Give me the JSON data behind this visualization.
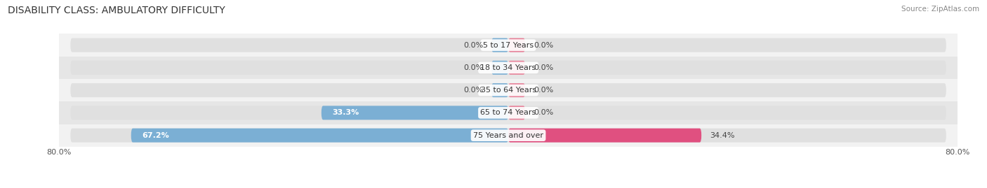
{
  "title": "DISABILITY CLASS: AMBULATORY DIFFICULTY",
  "source": "Source: ZipAtlas.com",
  "categories": [
    "5 to 17 Years",
    "18 to 34 Years",
    "35 to 64 Years",
    "65 to 74 Years",
    "75 Years and over"
  ],
  "male_values": [
    0.0,
    0.0,
    0.0,
    33.3,
    67.2
  ],
  "female_values": [
    0.0,
    0.0,
    0.0,
    0.0,
    34.4
  ],
  "male_color": "#7bafd4",
  "female_color": "#e8829a",
  "female_color_bright": "#e05080",
  "row_bg_color_light": "#f2f2f2",
  "row_bg_color_dark": "#e6e6e6",
  "pill_bg_color": "#e0e0e0",
  "xlim_left": -80.0,
  "xlim_right": 80.0,
  "title_fontsize": 10,
  "label_fontsize": 8,
  "value_fontsize": 8,
  "bar_height": 0.62,
  "background_color": "#ffffff"
}
